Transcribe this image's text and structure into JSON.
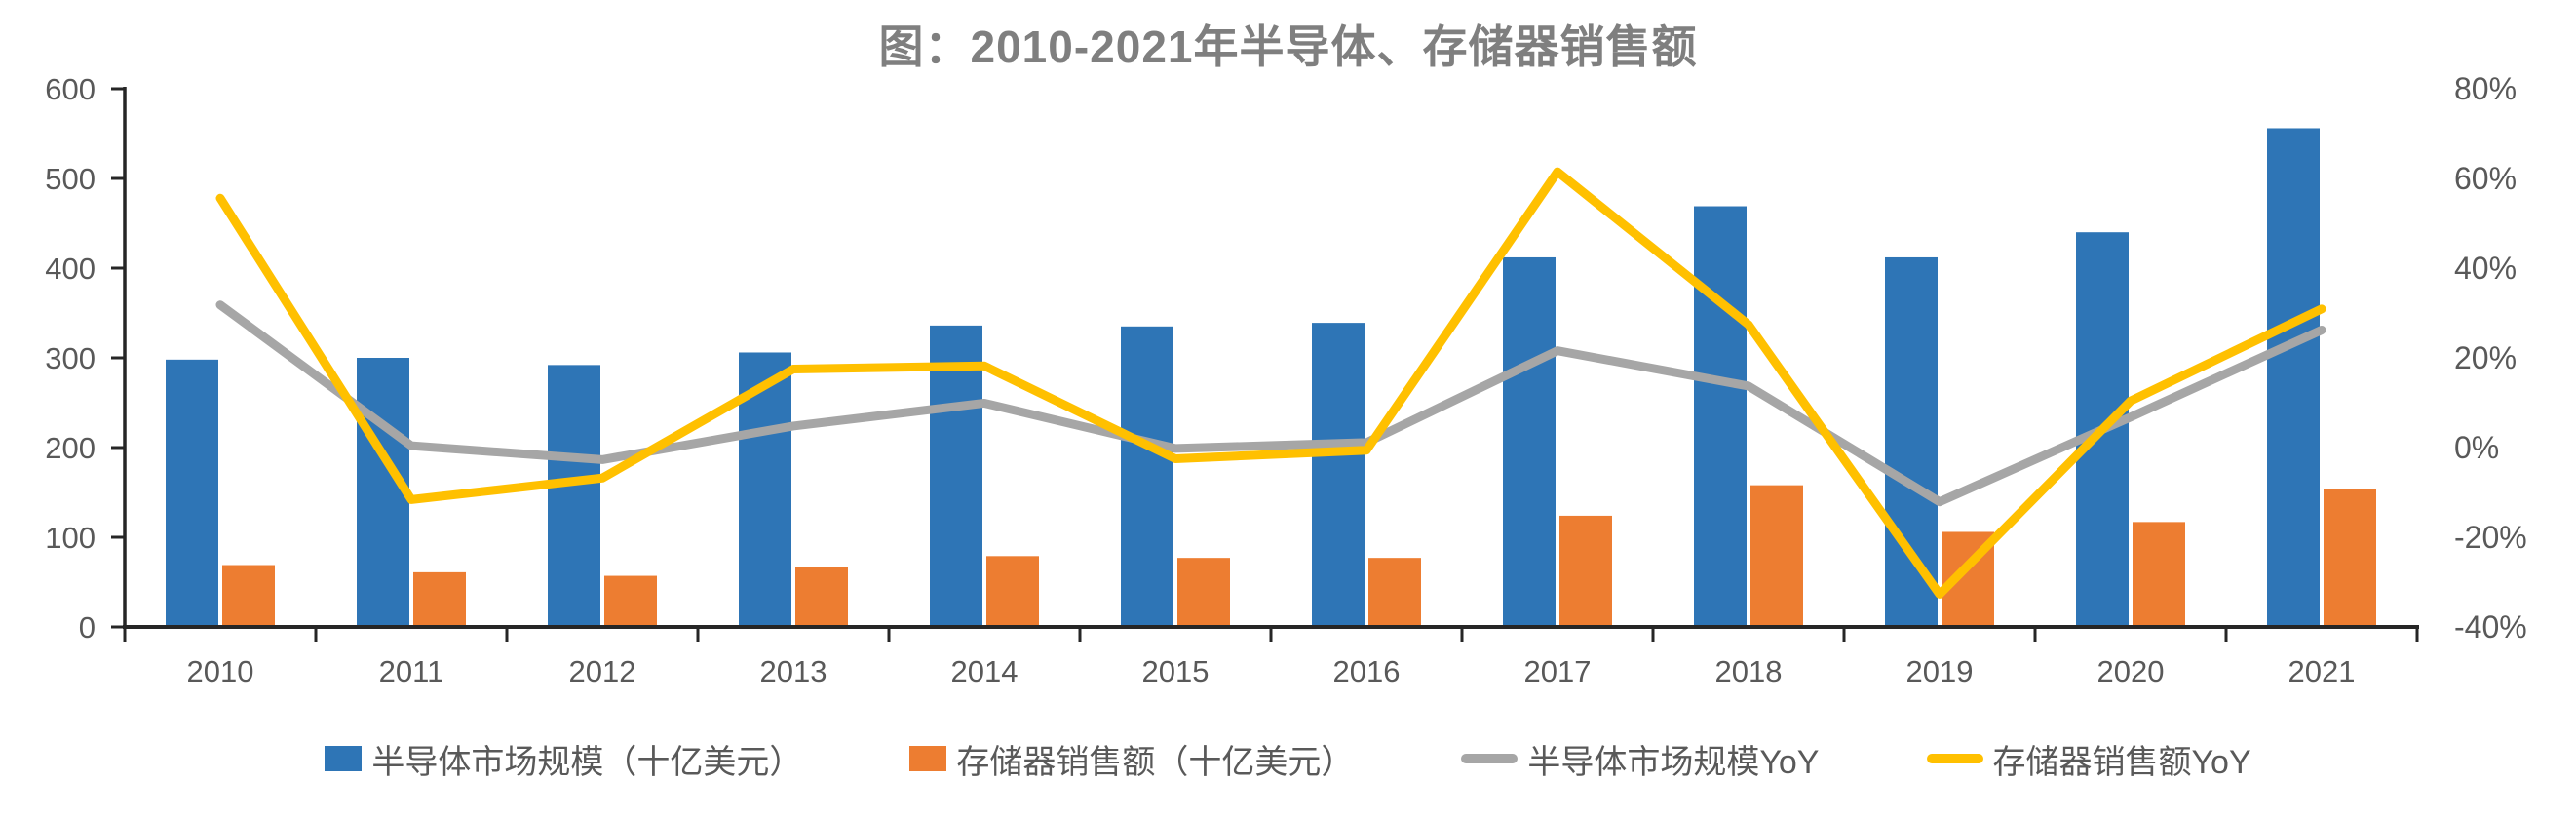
{
  "page": {
    "title": "图：2010-2021年半导体、存储器销售额",
    "background": "#ffffff"
  },
  "colors": {
    "axis_line": "#262626",
    "tick_text": "#595959",
    "title_text": "#7f7f7f",
    "legend_text": "#595959",
    "semiconductor_bar": "#2E75B6",
    "memory_bar": "#ED7D31",
    "semiconductor_yoy_line": "#A6A6A6",
    "memory_yoy_line": "#FFC000"
  },
  "chart_data": {
    "type": "bar",
    "subtype": "combo-bar-line-dual-axis",
    "title": "图：2010-2021年半导体、存储器销售额",
    "categories": [
      "2010",
      "2011",
      "2012",
      "2013",
      "2014",
      "2015",
      "2016",
      "2017",
      "2018",
      "2019",
      "2020",
      "2021"
    ],
    "series": [
      {
        "id": "semiconductor_sales",
        "name": "半导体市场规模（十亿美元）",
        "type": "bar",
        "axis": "left",
        "color": "#2E75B6",
        "values": [
          298,
          300,
          292,
          306,
          336,
          335,
          339,
          412,
          469,
          412,
          440,
          556
        ]
      },
      {
        "id": "memory_sales",
        "name": "存储器销售额（十亿美元）",
        "type": "bar",
        "axis": "left",
        "color": "#ED7D31",
        "values": [
          69,
          61,
          57,
          67,
          79,
          77,
          77,
          124,
          158,
          106,
          117,
          154
        ]
      },
      {
        "id": "semiconductor_yoy",
        "name": "半导体市场规模YoY",
        "type": "line",
        "axis": "right",
        "unit": "%",
        "color": "#A6A6A6",
        "values": [
          31.8,
          0.4,
          -2.7,
          4.8,
          9.9,
          -0.2,
          1.1,
          21.6,
          13.7,
          -12.1,
          6.8,
          26.2
        ]
      },
      {
        "id": "memory_yoy",
        "name": "存储器销售额YoY",
        "type": "line",
        "axis": "right",
        "unit": "%",
        "color": "#FFC000",
        "values": [
          55.6,
          -11.6,
          -6.8,
          17.5,
          18.2,
          -2.5,
          -0.6,
          61.5,
          27.4,
          -32.7,
          10.4,
          30.9
        ]
      }
    ],
    "left_axis": {
      "min": 0,
      "max": 600,
      "step": 100,
      "tick_labels": [
        "600",
        "500",
        "400",
        "300",
        "200",
        "100",
        "0"
      ]
    },
    "right_axis": {
      "min": -40,
      "max": 80,
      "step": 20,
      "format": "percent",
      "tick_labels": [
        "80%",
        "60%",
        "40%",
        "20%",
        "0%",
        "-20%",
        "-40%"
      ]
    },
    "xlabel": "",
    "ylabel": "",
    "gridlines": false,
    "legend_position": "bottom"
  }
}
